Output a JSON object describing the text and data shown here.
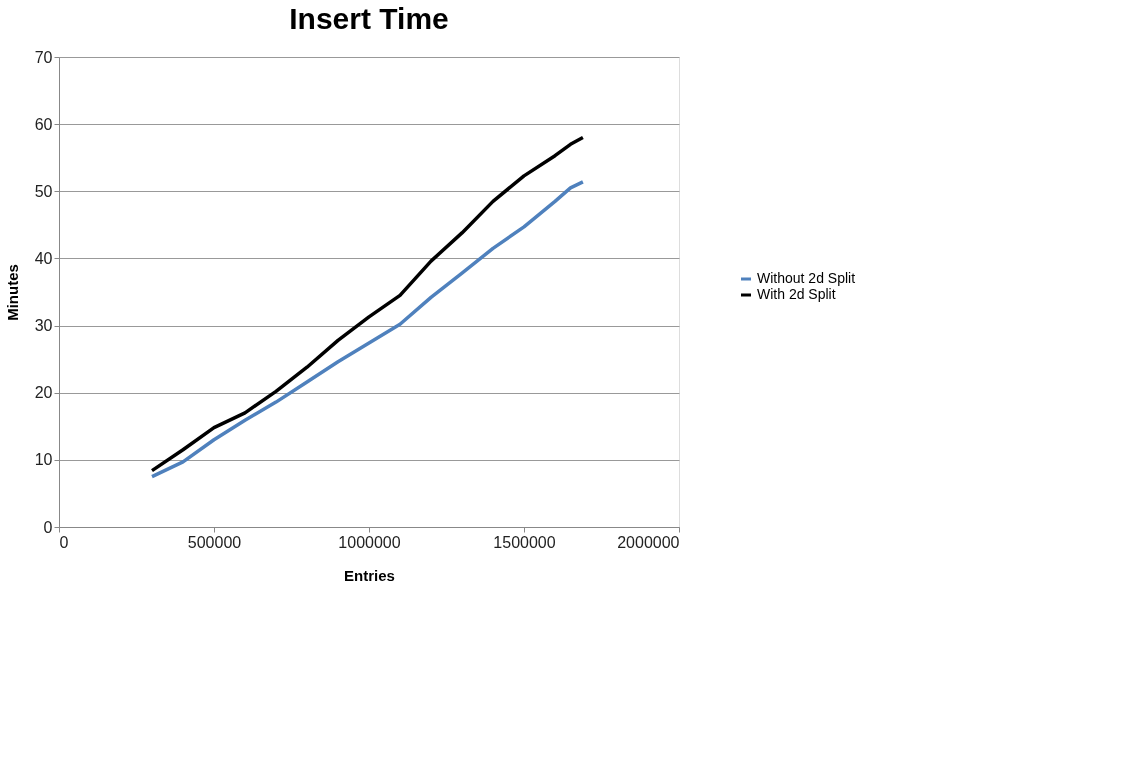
{
  "chart_data": {
    "type": "line",
    "title": "Insert Time",
    "xlabel": "Entries",
    "ylabel": "Minutes",
    "x": [
      300000,
      400000,
      500000,
      600000,
      700000,
      800000,
      900000,
      1000000,
      1100000,
      1200000,
      1300000,
      1400000,
      1500000,
      1600000,
      1650000,
      1690000
    ],
    "series": [
      {
        "name": "Without 2d Split",
        "color": "#4f81bd",
        "values": [
          7.5,
          9.7,
          13.0,
          15.9,
          18.6,
          21.6,
          24.6,
          27.4,
          30.2,
          34.2,
          37.8,
          41.5,
          44.7,
          48.5,
          50.5,
          51.4
        ]
      },
      {
        "name": "With 2d Split",
        "color": "#000000",
        "values": [
          8.4,
          11.5,
          14.8,
          17.0,
          20.2,
          23.8,
          27.8,
          31.3,
          34.5,
          39.6,
          43.8,
          48.5,
          52.3,
          55.3,
          57.0,
          58.0
        ]
      }
    ],
    "xlim": [
      0,
      2000000
    ],
    "xticks": [
      0,
      500000,
      1000000,
      1500000,
      2000000
    ],
    "ylim": [
      0,
      70
    ],
    "yticks": [
      0,
      10,
      20,
      30,
      40,
      50,
      60,
      70
    ],
    "grid": "y",
    "legend": "right",
    "marker": "none",
    "line_style": "solid"
  }
}
